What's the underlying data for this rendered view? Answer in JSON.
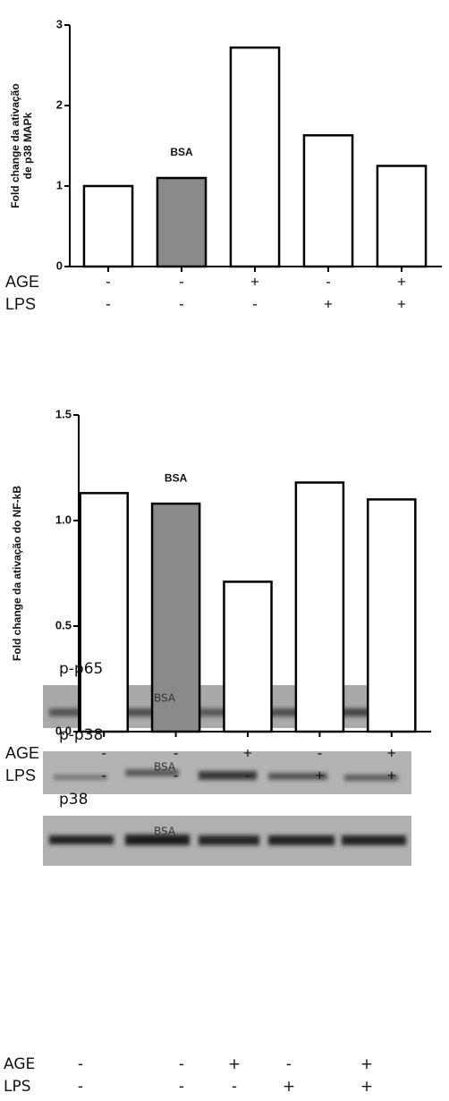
{
  "chart_data": [
    {
      "type": "bar",
      "ylabel": [
        "Fold change da ativação",
        "de p38 MAPk"
      ],
      "categories": [
        null,
        null,
        null,
        null,
        null
      ],
      "values": [
        1.0,
        1.1,
        2.72,
        1.63,
        1.25
      ],
      "colors": [
        "#ffffff",
        "#8a8a8a",
        "#ffffff",
        "#ffffff",
        "#ffffff"
      ],
      "ylim": [
        0,
        3
      ],
      "yticks": [
        0,
        1,
        2,
        3
      ],
      "annotations": [
        {
          "text": "BSA",
          "index": 1
        }
      ],
      "conditions": [
        {
          "label": "AGE",
          "signs": [
            "-",
            "-",
            "+",
            "-",
            "+"
          ]
        },
        {
          "label": "LPS",
          "signs": [
            "-",
            "-",
            "-",
            "+",
            "+"
          ]
        }
      ]
    },
    {
      "type": "bar",
      "ylabel": [
        "Fold change da ativação do NF-kB"
      ],
      "categories": [
        null,
        null,
        null,
        null,
        null
      ],
      "values": [
        1.13,
        1.08,
        0.71,
        1.18,
        1.1
      ],
      "colors": [
        "#ffffff",
        "#8a8a8a",
        "#ffffff",
        "#ffffff",
        "#ffffff"
      ],
      "ylim": [
        0,
        1.5
      ],
      "yticks": [
        {
          "value": 0,
          "label": "0.0"
        },
        0.5,
        {
          "value": 1,
          "label": "1.0"
        },
        1.5
      ],
      "annotations": [
        {
          "text": "BSA",
          "index": 1
        }
      ],
      "conditions": [
        {
          "label": "AGE",
          "signs": [
            "-",
            "-",
            "+",
            "-",
            "+"
          ]
        },
        {
          "label": "LPS",
          "signs": [
            "-",
            "-",
            "-",
            "+",
            "+"
          ]
        }
      ]
    }
  ],
  "blot": {
    "panels": [
      {
        "label": "p-p65",
        "annotation": "BSA"
      },
      {
        "label": "p-p38",
        "annotation": "BSA"
      },
      {
        "label": "p38",
        "annotation": "BSA"
      }
    ],
    "conditions": [
      {
        "label": "AGE",
        "signs": [
          "-",
          "-",
          "+",
          "-",
          "+"
        ]
      },
      {
        "label": "LPS",
        "signs": [
          "-",
          "-",
          "-",
          "+",
          "+"
        ]
      }
    ]
  }
}
